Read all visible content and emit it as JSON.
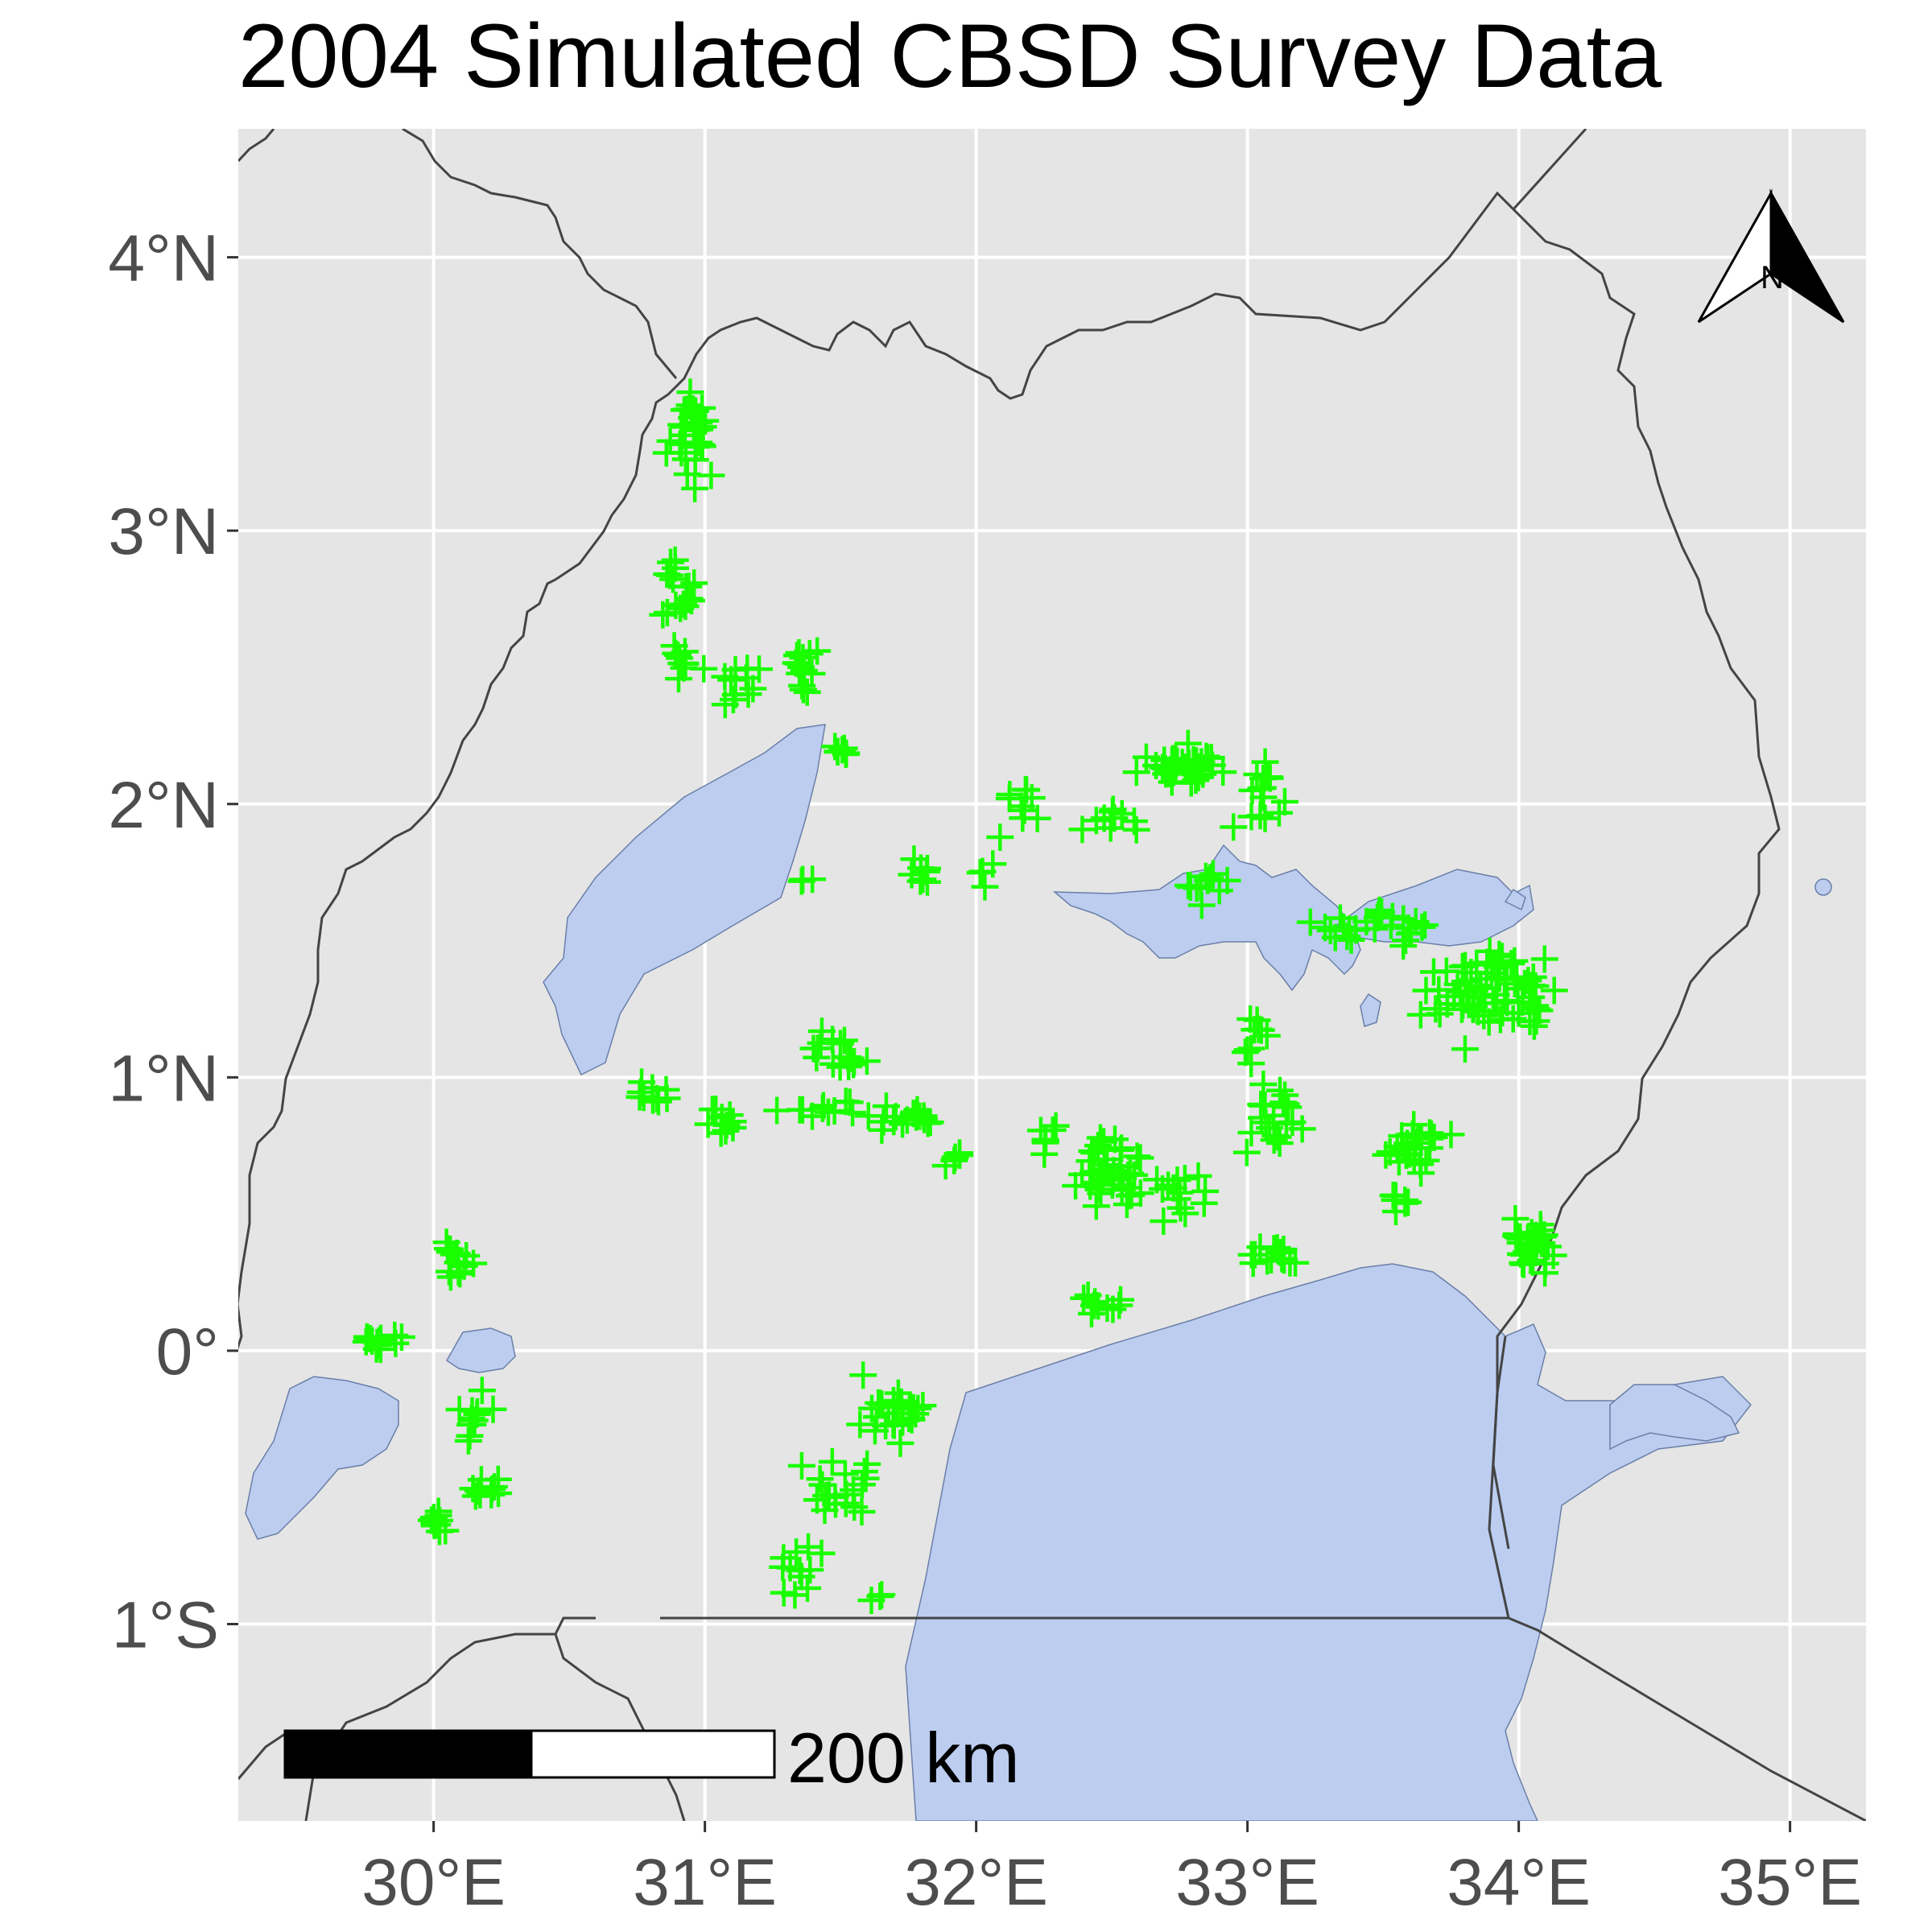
{
  "title": "2004 Simulated CBSD Survey Data",
  "colors": {
    "panel": "#e5e5e5",
    "grid": "#ffffff",
    "water": "#bccdf0",
    "border": "#444444",
    "points": "#1aff00",
    "tick_text": "#4d4d4d"
  },
  "map": {
    "lon_range": [
      29.28,
      35.28
    ],
    "lat_range": [
      -1.72,
      4.47
    ],
    "x_ticks": [
      {
        "value": 30,
        "label": "30°E"
      },
      {
        "value": 31,
        "label": "31°E"
      },
      {
        "value": 32,
        "label": "32°E"
      },
      {
        "value": 33,
        "label": "33°E"
      },
      {
        "value": 34,
        "label": "34°E"
      },
      {
        "value": 35,
        "label": "35°E"
      }
    ],
    "y_ticks": [
      {
        "value": 4,
        "label": "4°N"
      },
      {
        "value": 3,
        "label": "3°N"
      },
      {
        "value": 2,
        "label": "2°N"
      },
      {
        "value": 1,
        "label": "1°N"
      },
      {
        "value": 0,
        "label": "0°"
      },
      {
        "value": -1,
        "label": "1°S"
      }
    ],
    "grid": true
  },
  "north_arrow": {
    "label": "N",
    "icon": "north-arrow-icon"
  },
  "scale_bar": {
    "label": "200 km",
    "length_km": 200
  },
  "survey_points": {
    "marker": "plus",
    "clusters": [
      {
        "lon": 30.95,
        "lat": 3.35,
        "n": 30,
        "spread": [
          0.07,
          0.14
        ]
      },
      {
        "lon": 30.9,
        "lat": 2.8,
        "n": 18,
        "spread": [
          0.06,
          0.14
        ]
      },
      {
        "lon": 30.9,
        "lat": 2.52,
        "n": 10,
        "spread": [
          0.08,
          0.05
        ]
      },
      {
        "lon": 31.1,
        "lat": 2.45,
        "n": 12,
        "spread": [
          0.1,
          0.08
        ]
      },
      {
        "lon": 31.35,
        "lat": 2.5,
        "n": 14,
        "spread": [
          0.05,
          0.12
        ]
      },
      {
        "lon": 31.5,
        "lat": 2.2,
        "n": 7,
        "spread": [
          0.03,
          0.03
        ]
      },
      {
        "lon": 31.38,
        "lat": 1.73,
        "n": 3,
        "spread": [
          0.03,
          0.02
        ]
      },
      {
        "lon": 31.8,
        "lat": 1.75,
        "n": 8,
        "spread": [
          0.04,
          0.05
        ]
      },
      {
        "lon": 32.02,
        "lat": 1.75,
        "n": 4,
        "spread": [
          0.03,
          0.08
        ]
      },
      {
        "lon": 32.15,
        "lat": 2.0,
        "n": 10,
        "spread": [
          0.06,
          0.15
        ]
      },
      {
        "lon": 32.5,
        "lat": 1.95,
        "n": 10,
        "spread": [
          0.12,
          0.05
        ]
      },
      {
        "lon": 32.75,
        "lat": 2.15,
        "n": 35,
        "spread": [
          0.15,
          0.08
        ]
      },
      {
        "lon": 33.05,
        "lat": 2.05,
        "n": 16,
        "spread": [
          0.08,
          0.1
        ]
      },
      {
        "lon": 32.85,
        "lat": 1.7,
        "n": 12,
        "spread": [
          0.08,
          0.05
        ]
      },
      {
        "lon": 33.5,
        "lat": 1.55,
        "n": 28,
        "spread": [
          0.2,
          0.06
        ]
      },
      {
        "lon": 33.85,
        "lat": 1.3,
        "n": 60,
        "spread": [
          0.15,
          0.15
        ]
      },
      {
        "lon": 34.05,
        "lat": 1.3,
        "n": 16,
        "spread": [
          0.07,
          0.1
        ]
      },
      {
        "lon": 33.05,
        "lat": 1.15,
        "n": 10,
        "spread": [
          0.05,
          0.1
        ]
      },
      {
        "lon": 33.1,
        "lat": 0.85,
        "n": 22,
        "spread": [
          0.08,
          0.1
        ]
      },
      {
        "lon": 33.6,
        "lat": 0.75,
        "n": 24,
        "spread": [
          0.1,
          0.1
        ]
      },
      {
        "lon": 33.55,
        "lat": 0.55,
        "n": 8,
        "spread": [
          0.05,
          0.05
        ]
      },
      {
        "lon": 34.05,
        "lat": 0.4,
        "n": 36,
        "spread": [
          0.06,
          0.1
        ]
      },
      {
        "lon": 33.1,
        "lat": 0.33,
        "n": 14,
        "spread": [
          0.08,
          0.04
        ]
      },
      {
        "lon": 32.5,
        "lat": 0.65,
        "n": 40,
        "spread": [
          0.12,
          0.12
        ]
      },
      {
        "lon": 32.75,
        "lat": 0.6,
        "n": 14,
        "spread": [
          0.1,
          0.1
        ]
      },
      {
        "lon": 32.45,
        "lat": 0.17,
        "n": 10,
        "spread": [
          0.08,
          0.04
        ]
      },
      {
        "lon": 32.25,
        "lat": 0.78,
        "n": 7,
        "spread": [
          0.05,
          0.05
        ]
      },
      {
        "lon": 31.75,
        "lat": 0.85,
        "n": 16,
        "spread": [
          0.1,
          0.06
        ]
      },
      {
        "lon": 31.5,
        "lat": 1.1,
        "n": 16,
        "spread": [
          0.1,
          0.1
        ]
      },
      {
        "lon": 31.45,
        "lat": 0.9,
        "n": 12,
        "spread": [
          0.15,
          0.06
        ]
      },
      {
        "lon": 31.05,
        "lat": 0.82,
        "n": 10,
        "spread": [
          0.08,
          0.06
        ]
      },
      {
        "lon": 30.8,
        "lat": 0.95,
        "n": 10,
        "spread": [
          0.08,
          0.05
        ]
      },
      {
        "lon": 31.95,
        "lat": 0.7,
        "n": 5,
        "spread": [
          0.05,
          0.04
        ]
      },
      {
        "lon": 30.1,
        "lat": 0.32,
        "n": 14,
        "spread": [
          0.05,
          0.06
        ]
      },
      {
        "lon": 29.8,
        "lat": 0.03,
        "n": 14,
        "spread": [
          0.08,
          0.04
        ]
      },
      {
        "lon": 30.15,
        "lat": -0.25,
        "n": 12,
        "spread": [
          0.06,
          0.08
        ]
      },
      {
        "lon": 30.2,
        "lat": -0.5,
        "n": 10,
        "spread": [
          0.06,
          0.04
        ]
      },
      {
        "lon": 30.0,
        "lat": -0.63,
        "n": 10,
        "spread": [
          0.05,
          0.04
        ]
      },
      {
        "lon": 31.7,
        "lat": -0.22,
        "n": 28,
        "spread": [
          0.1,
          0.1
        ]
      },
      {
        "lon": 31.5,
        "lat": -0.55,
        "n": 20,
        "spread": [
          0.12,
          0.12
        ]
      },
      {
        "lon": 31.35,
        "lat": -0.8,
        "n": 12,
        "spread": [
          0.08,
          0.1
        ]
      },
      {
        "lon": 31.65,
        "lat": -0.9,
        "n": 3,
        "spread": [
          0.04,
          0.02
        ]
      }
    ]
  }
}
